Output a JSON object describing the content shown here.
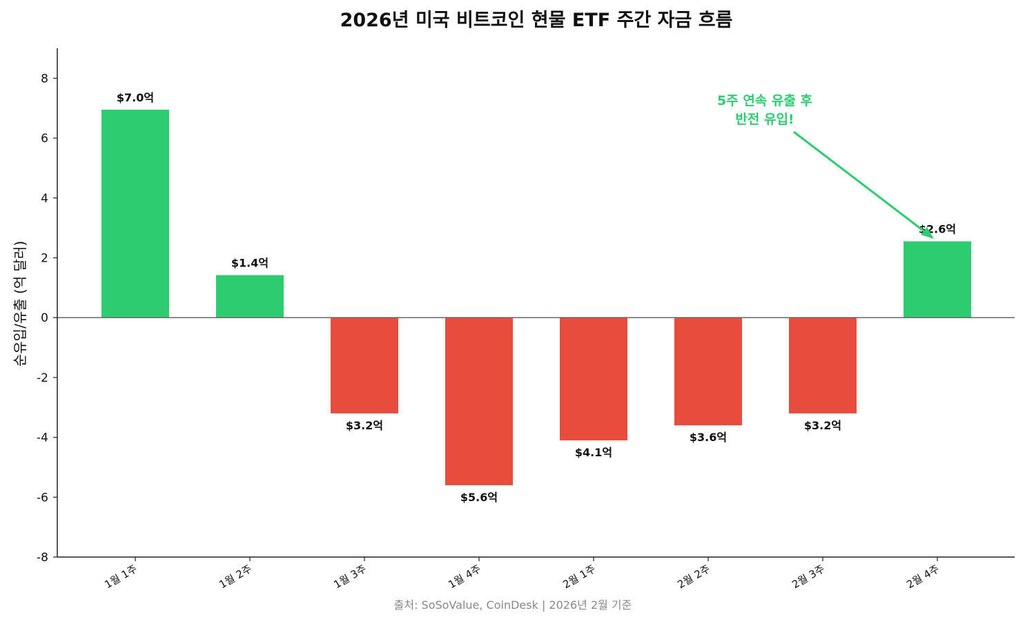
{
  "chart_data": {
    "type": "bar",
    "title": "2026년 미국 비트코인 현물 ETF 주간 자금 흐름",
    "ylabel": "순유입/유출 (억 달러)",
    "xlabel": "",
    "categories": [
      "1월 1주",
      "1월 2주",
      "1월 3주",
      "1월 4주",
      "2월 1주",
      "2월 2주",
      "2월 3주",
      "2월 4주"
    ],
    "values": [
      6.95,
      1.42,
      -3.2,
      -5.6,
      -4.1,
      -3.6,
      -3.2,
      2.55
    ],
    "data_labels": [
      "$7.0억",
      "$1.4억",
      "$3.2억",
      "$5.6억",
      "$4.1억",
      "$3.6억",
      "$3.2억",
      "$2.6억"
    ],
    "ylim": [
      -8,
      9
    ],
    "yticks": [
      -8,
      -6,
      -4,
      -2,
      0,
      2,
      4,
      6,
      8
    ],
    "grid": false,
    "colors": {
      "positive": "#2ecc71",
      "negative": "#e74c3c",
      "annotation": "#2ecc71"
    },
    "annotation": {
      "line1": "5주 연속 유출 후",
      "line2": "반전 유입!",
      "points_to": "2월 4주"
    },
    "source": "출처: SoSoValue, CoinDesk | 2026년 2월 기준"
  }
}
